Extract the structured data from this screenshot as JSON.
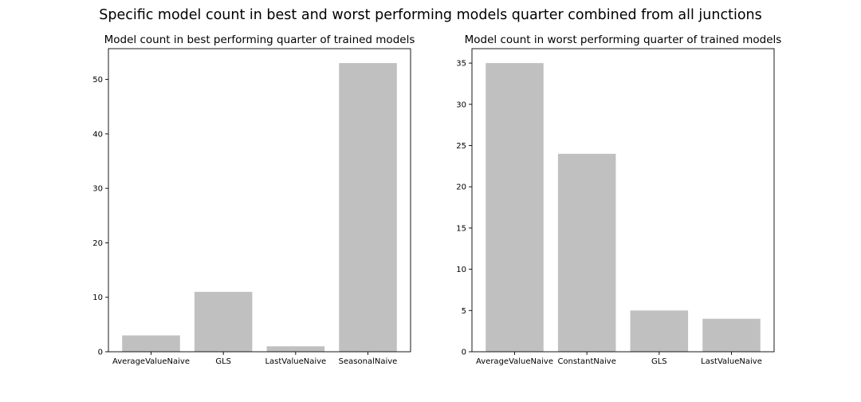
{
  "figure": {
    "title": "Specific model count in best and worst performing models quarter combined from all junctions"
  },
  "colors": {
    "bar": "#c0c0c0",
    "axis": "#000000",
    "background": "#ffffff"
  },
  "chart_data": [
    {
      "type": "bar",
      "title": "Model count in best performing quarter of trained models",
      "xlabel": "",
      "ylabel": "",
      "categories": [
        "AverageValueNaive",
        "GLS",
        "LastValueNaive",
        "SeasonalNaive"
      ],
      "values": [
        3,
        11,
        1,
        53
      ],
      "ylim": [
        0,
        55.65
      ],
      "yticks": [
        0,
        10,
        20,
        30,
        40,
        50
      ],
      "grid": false
    },
    {
      "type": "bar",
      "title": "Model count in worst performing quarter of trained models",
      "xlabel": "",
      "ylabel": "",
      "categories": [
        "AverageValueNaive",
        "ConstantNaive",
        "GLS",
        "LastValueNaive"
      ],
      "values": [
        35,
        24,
        5,
        4
      ],
      "ylim": [
        0,
        36.75
      ],
      "yticks": [
        0,
        5,
        10,
        15,
        20,
        25,
        30,
        35
      ],
      "grid": false
    }
  ]
}
